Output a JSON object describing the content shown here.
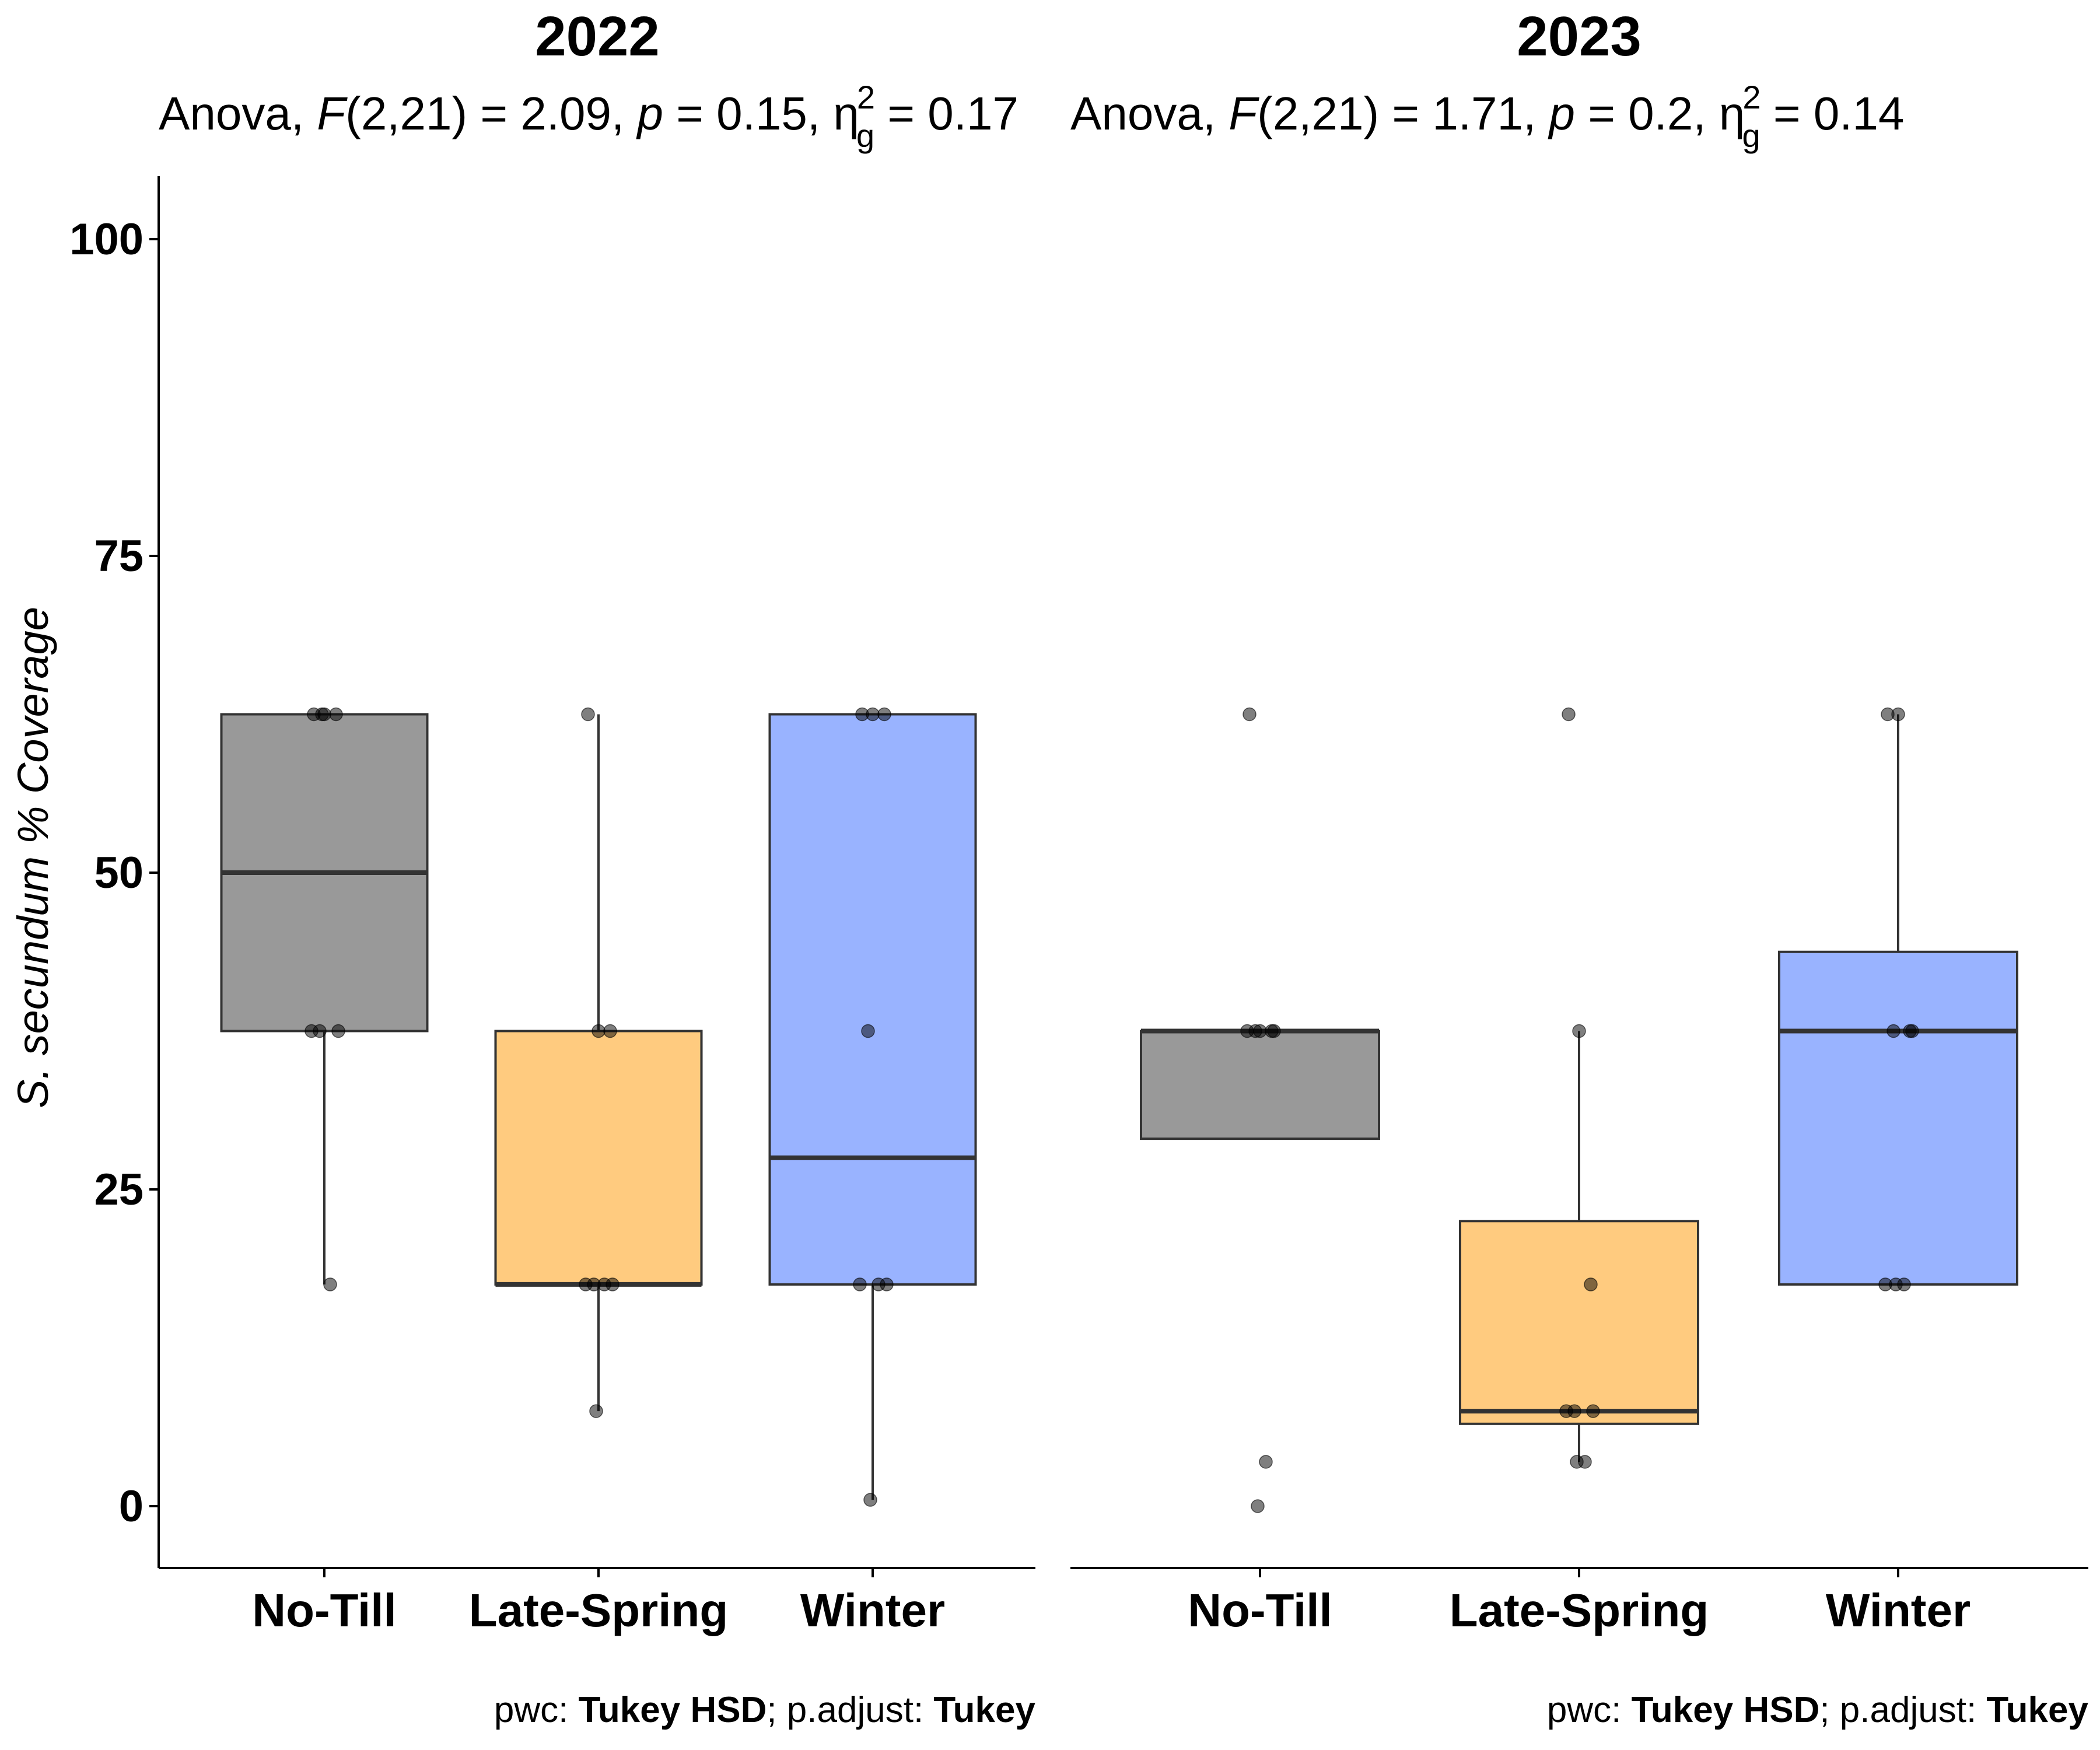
{
  "chart_data": {
    "type": "box",
    "ylabel": "S. secundum % Coverage",
    "ylim": [
      -5,
      105
    ],
    "yticks": [
      0,
      25,
      50,
      75,
      100
    ],
    "colors": {
      "No-Till": "#999999",
      "Late-Spring": "#FFCB7F",
      "Winter": "#99B3FF"
    },
    "panels": [
      {
        "title": "2022",
        "anova": {
          "prefix": "Anova, ",
          "F_label": "F",
          "df": "(2,21)",
          "F_value": "2.09",
          "p_label": "p",
          "p_value": "0.15",
          "eta_sym": "η",
          "eta_sub": "g",
          "eta_sup": "2",
          "eta_value": "0.17"
        },
        "caption": {
          "pwc_label": "pwc: ",
          "pwc": "Tukey HSD",
          "sep": "; p.adjust: ",
          "adjust": "Tukey"
        },
        "groups": [
          {
            "name": "No-Till",
            "q1": 37.5,
            "median": 50,
            "q3": 62.5,
            "whisker_low": 17.5,
            "whisker_high": 62.5,
            "points": [
              62.5,
              62.5,
              62.5,
              37.5,
              37.5,
              37.5,
              17.5,
              62.5
            ]
          },
          {
            "name": "Late-Spring",
            "q1": 17.5,
            "median": 17.5,
            "q3": 37.5,
            "whisker_low": 7.5,
            "whisker_high": 62.5,
            "points": [
              62.5,
              37.5,
              37.5,
              17.5,
              17.5,
              17.5,
              17.5,
              7.5
            ]
          },
          {
            "name": "Winter",
            "q1": 17.5,
            "median": 27.5,
            "q3": 62.5,
            "whisker_low": 0.5,
            "whisker_high": 62.5,
            "points": [
              62.5,
              62.5,
              62.5,
              37.5,
              17.5,
              17.5,
              17.5,
              0.5
            ]
          }
        ]
      },
      {
        "title": "2023",
        "anova": {
          "prefix": "Anova, ",
          "F_label": "F",
          "df": "(2,21)",
          "F_value": "1.71",
          "p_label": "p",
          "p_value": "0.2",
          "eta_sym": "η",
          "eta_sub": "g",
          "eta_sup": "2",
          "eta_value": "0.14"
        },
        "caption": {
          "pwc_label": "pwc: ",
          "pwc": "Tukey HSD",
          "sep": "; p.adjust: ",
          "adjust": "Tukey"
        },
        "groups": [
          {
            "name": "No-Till",
            "q1": 29,
            "median": 37.5,
            "q3": 37.5,
            "whisker_low": 29,
            "whisker_high": 37.5,
            "points": [
              62.5,
              37.5,
              37.5,
              37.5,
              37.5,
              37.5,
              3.5,
              0
            ]
          },
          {
            "name": "Late-Spring",
            "q1": 6.5,
            "median": 7.5,
            "q3": 22.5,
            "whisker_low": 3.5,
            "whisker_high": 37.5,
            "points": [
              62.5,
              37.5,
              17.5,
              7.5,
              7.5,
              7.5,
              3.5,
              3.5
            ]
          },
          {
            "name": "Winter",
            "q1": 17.5,
            "median": 37.5,
            "q3": 43.75,
            "whisker_low": 17.5,
            "whisker_high": 62.5,
            "points": [
              62.5,
              62.5,
              37.5,
              37.5,
              37.5,
              17.5,
              17.5,
              17.5
            ]
          }
        ]
      }
    ]
  }
}
